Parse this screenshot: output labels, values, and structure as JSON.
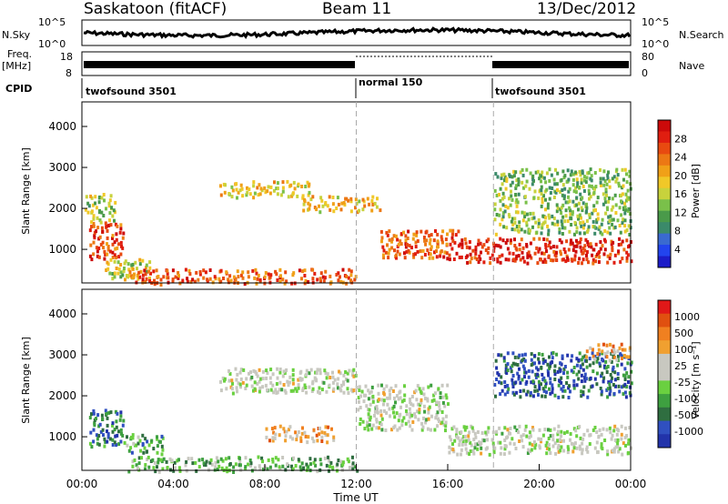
{
  "header": {
    "station": "Saskatoon (fitACF)",
    "beam": "Beam 11",
    "date": "13/Dec/2012"
  },
  "colors": {
    "power_scale": [
      "#1c1cc8",
      "#2244ee",
      "#3a6ad0",
      "#3b8a6a",
      "#4a9a4a",
      "#7ac04a",
      "#c8d23c",
      "#f0c828",
      "#f0a018",
      "#ec7814",
      "#e84a10",
      "#e01e10",
      "#cc0a0a"
    ],
    "velocity_scale": [
      "#2233aa",
      "#3050c0",
      "#2f6e40",
      "#3ea040",
      "#6ad040",
      "#c8c8c0",
      "#c8c8c0",
      "#f0a030",
      "#f08020",
      "#e05010",
      "#e01818"
    ]
  },
  "noise_panel": {
    "label_left": "N.Sky",
    "label_right": "N.Search",
    "ticks": [
      "10^5",
      "10^0"
    ]
  },
  "freq_panel": {
    "label_left_top": "Freq.",
    "label_left_bottom": "[MHz]",
    "ticks_left": [
      "18",
      "8"
    ],
    "ticks_right": [
      "80",
      "0"
    ],
    "label_right": "Nave"
  },
  "cpid_panel": {
    "label": "CPID",
    "modes": [
      "twofsound 3501",
      "normal 150",
      "twofsound 3501"
    ]
  },
  "chart_data": [
    {
      "type": "heatmap",
      "name": "power",
      "ylabel": "Slant Range [km]",
      "y_ticks": [
        "4000",
        "3000",
        "2000",
        "1000"
      ],
      "xlim": [
        0,
        24
      ],
      "ylim": [
        180,
        4600
      ],
      "colorbar_label": "Power [dB]",
      "colorbar_ticks": [
        "28",
        "24",
        "20",
        "16",
        "12",
        "8",
        "4"
      ],
      "bands": [
        {
          "x": [
            0.2,
            1.8
          ],
          "y": [
            800,
            1700
          ],
          "level": 0.9
        },
        {
          "x": [
            0.1,
            1.4
          ],
          "y": [
            1700,
            2400
          ],
          "level": 0.5
        },
        {
          "x": [
            1.0,
            3.0
          ],
          "y": [
            300,
            800
          ],
          "level": 0.55
        },
        {
          "x": [
            2.0,
            12.0
          ],
          "y": [
            180,
            550
          ],
          "level": 0.85
        },
        {
          "x": [
            6.0,
            10.0
          ],
          "y": [
            2300,
            2700
          ],
          "level": 0.6
        },
        {
          "x": [
            9.5,
            13.0
          ],
          "y": [
            1950,
            2350
          ],
          "level": 0.65
        },
        {
          "x": [
            13.0,
            16.5
          ],
          "y": [
            800,
            1500
          ],
          "level": 0.85
        },
        {
          "x": [
            16.5,
            24.0
          ],
          "y": [
            700,
            1300
          ],
          "level": 0.95
        },
        {
          "x": [
            18.0,
            24.0
          ],
          "y": [
            1400,
            3000
          ],
          "level": 0.45
        }
      ]
    },
    {
      "type": "heatmap",
      "name": "velocity",
      "ylabel": "Slant Range [km]",
      "y_ticks": [
        "4000",
        "3000",
        "2000",
        "1000"
      ],
      "xlim": [
        0,
        24
      ],
      "ylim": [
        180,
        4600
      ],
      "x_ticks": [
        "00:00",
        "04:00",
        "08:00",
        "12:00",
        "16:00",
        "20:00",
        "00:00"
      ],
      "xlabel": "Time UT",
      "colorbar_label": "Velocity [m s⁻¹]",
      "colorbar_ticks": [
        "1000",
        "500",
        "100",
        "25",
        "-25",
        "-100",
        "-500",
        "-1000"
      ],
      "bands": [
        {
          "x": [
            0.2,
            1.8
          ],
          "y": [
            800,
            1700
          ],
          "level": 0.25
        },
        {
          "x": [
            1.8,
            3.5
          ],
          "y": [
            600,
            1100
          ],
          "level": 0.35
        },
        {
          "x": [
            2.0,
            12.0
          ],
          "y": [
            180,
            550
          ],
          "level": 0.4
        },
        {
          "x": [
            6.0,
            12.0
          ],
          "y": [
            2100,
            2700
          ],
          "level": 0.55
        },
        {
          "x": [
            8.0,
            11.0
          ],
          "y": [
            900,
            1300
          ],
          "level": 0.75
        },
        {
          "x": [
            12.0,
            16.0
          ],
          "y": [
            1200,
            2300
          ],
          "level": 0.55
        },
        {
          "x": [
            16.0,
            24.0
          ],
          "y": [
            600,
            1300
          ],
          "level": 0.55
        },
        {
          "x": [
            18.0,
            24.0
          ],
          "y": [
            2000,
            3100
          ],
          "level": 0.2
        },
        {
          "x": [
            22.0,
            24.0
          ],
          "y": [
            2900,
            3300
          ],
          "level": 0.8
        }
      ]
    }
  ]
}
